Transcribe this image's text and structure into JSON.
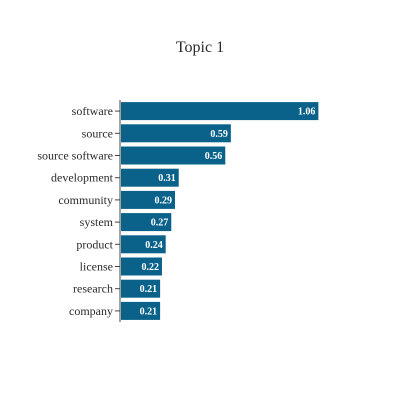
{
  "chart_data": {
    "type": "bar",
    "orientation": "horizontal",
    "title": "Topic 1",
    "categories": [
      "software",
      "source",
      "source software",
      "development",
      "community",
      "system",
      "product",
      "license",
      "research",
      "company"
    ],
    "values": [
      1.06,
      0.59,
      0.56,
      0.31,
      0.29,
      0.27,
      0.24,
      0.22,
      0.21,
      0.21
    ],
    "xlim": [
      0,
      1.45
    ],
    "bar_color": "#0a6189",
    "label_color": "#ffffff",
    "xlabel": "",
    "ylabel": "",
    "grid": false,
    "legend": false
  }
}
